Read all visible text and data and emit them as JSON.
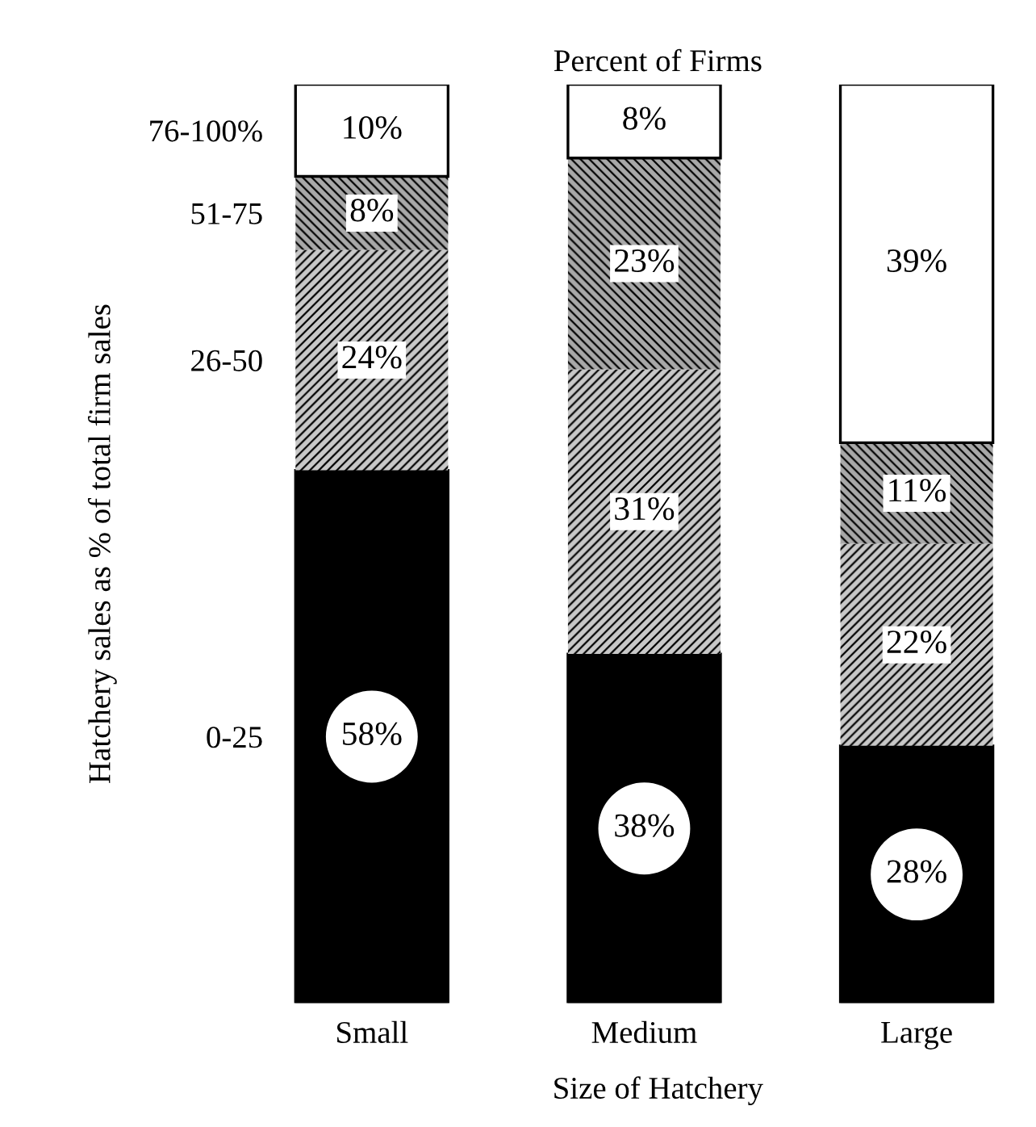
{
  "chart_data": {
    "type": "bar",
    "stacked": true,
    "title": "Percent of Firms",
    "xlabel": "Size of Hatchery",
    "ylabel": "Hatchery sales as % of total firm sales",
    "categories": [
      "Small",
      "Medium",
      "Large"
    ],
    "series": [
      {
        "name": "0-25",
        "color": "#000000",
        "values": [
          58,
          38,
          28
        ],
        "value_labels": [
          "58%",
          "38%",
          "28%"
        ]
      },
      {
        "name": "26-50",
        "color": "#c8c8c8",
        "values": [
          24,
          31,
          22
        ],
        "value_labels": [
          "24%",
          "31%",
          "22%"
        ]
      },
      {
        "name": "51-75",
        "color": "#a8a8a8",
        "values": [
          8,
          23,
          11
        ],
        "value_labels": [
          "8%",
          "23%",
          "11%"
        ]
      },
      {
        "name": "76-100%",
        "color": "#ffffff",
        "values": [
          10,
          8,
          39
        ],
        "value_labels": [
          "10%",
          "8%",
          "39%"
        ]
      }
    ],
    "legend": false,
    "grid": false
  }
}
